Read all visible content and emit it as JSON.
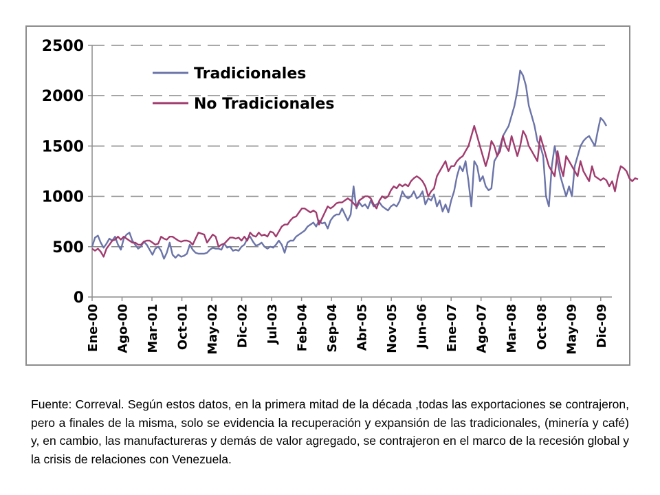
{
  "caption": "Fuente: Correval. Según estos datos, en la  primera mitad de la década ,todas las exportaciones se contrajeron, pero a finales de la misma, solo se evidencia la recuperación y expansión de las tradicionales,  (minería y café) y, en cambio, las manufactureras y demás de valor agregado, se contrajeron en el marco de la recesión global y la crisis de relaciones con Venezuela.",
  "chart_data": {
    "type": "line",
    "ylim": [
      0,
      2500
    ],
    "yticks": [
      "0",
      "500",
      "1000",
      "1500",
      "2000",
      "2500"
    ],
    "grid": "horizontal dashed",
    "legend": "top-left",
    "xtick_labels": [
      "Ene-00",
      "Ago-00",
      "Mar-01",
      "Oct-01",
      "May-02",
      "Dic-02",
      "Jul-03",
      "Feb-04",
      "Sep-04",
      "Abr-05",
      "Nov-05",
      "Jun-06",
      "Ene-07",
      "Ago-07",
      "Mar-08",
      "Oct-08",
      "May-09",
      "Dic-09"
    ],
    "x_start": "2000-01",
    "series": [
      {
        "name": "Tradicionales",
        "color": "#6b74a8",
        "values": [
          500,
          590,
          610,
          540,
          490,
          530,
          580,
          560,
          600,
          520,
          470,
          580,
          620,
          640,
          560,
          520,
          480,
          500,
          550,
          520,
          470,
          420,
          480,
          500,
          460,
          380,
          440,
          540,
          420,
          390,
          420,
          400,
          410,
          430,
          520,
          470,
          440,
          430,
          430,
          430,
          440,
          470,
          490,
          480,
          480,
          470,
          530,
          490,
          500,
          460,
          470,
          460,
          500,
          520,
          580,
          600,
          550,
          510,
          520,
          540,
          500,
          480,
          500,
          490,
          520,
          560,
          520,
          440,
          540,
          560,
          560,
          600,
          620,
          640,
          660,
          700,
          720,
          740,
          700,
          760,
          730,
          740,
          680,
          760,
          800,
          820,
          820,
          880,
          820,
          760,
          820,
          1100,
          880,
          940,
          900,
          920,
          880,
          960,
          900,
          920,
          940,
          900,
          880,
          860,
          900,
          920,
          900,
          950,
          1050,
          1000,
          980,
          1000,
          1050,
          980,
          1000,
          1050,
          920,
          980,
          960,
          1020,
          900,
          960,
          850,
          920,
          840,
          960,
          1050,
          1200,
          1300,
          1250,
          1350,
          1150,
          900,
          1350,
          1300,
          1150,
          1200,
          1100,
          1060,
          1080,
          1350,
          1400,
          1500,
          1600,
          1650,
          1700,
          1800,
          1900,
          2050,
          2250,
          2200,
          2100,
          1900,
          1800,
          1700,
          1550,
          1500,
          1400,
          1000,
          900,
          1300,
          1500,
          1350,
          1200,
          1100,
          1000,
          1100,
          1000,
          1300,
          1400,
          1500,
          1550,
          1580,
          1600,
          1550,
          1500,
          1650,
          1780,
          1750,
          1700
        ]
      },
      {
        "name": "No Tradicionales",
        "color": "#a03b6e",
        "values": [
          480,
          460,
          480,
          450,
          400,
          480,
          520,
          560,
          570,
          600,
          570,
          600,
          580,
          560,
          540,
          540,
          520,
          520,
          550,
          560,
          560,
          540,
          520,
          530,
          600,
          580,
          570,
          600,
          600,
          580,
          560,
          550,
          560,
          560,
          550,
          520,
          580,
          640,
          630,
          620,
          540,
          580,
          620,
          600,
          500,
          520,
          530,
          560,
          590,
          590,
          580,
          590,
          560,
          600,
          560,
          640,
          610,
          600,
          640,
          610,
          620,
          600,
          650,
          640,
          600,
          650,
          700,
          720,
          720,
          760,
          790,
          800,
          840,
          880,
          880,
          860,
          840,
          860,
          840,
          720,
          780,
          840,
          900,
          880,
          900,
          930,
          940,
          940,
          960,
          980,
          960,
          930,
          900,
          960,
          980,
          1000,
          1000,
          980,
          920,
          880,
          960,
          1000,
          980,
          1000,
          1060,
          1100,
          1080,
          1120,
          1100,
          1120,
          1100,
          1150,
          1180,
          1200,
          1180,
          1150,
          1100,
          1000,
          1050,
          1080,
          1200,
          1250,
          1300,
          1350,
          1250,
          1300,
          1300,
          1350,
          1380,
          1400,
          1450,
          1500,
          1600,
          1700,
          1600,
          1500,
          1400,
          1300,
          1400,
          1550,
          1500,
          1400,
          1450,
          1600,
          1500,
          1450,
          1600,
          1500,
          1400,
          1500,
          1650,
          1600,
          1500,
          1450,
          1400,
          1350,
          1600,
          1500,
          1400,
          1300,
          1250,
          1200,
          1450,
          1300,
          1200,
          1400,
          1350,
          1300,
          1250,
          1200,
          1350,
          1250,
          1200,
          1150,
          1300,
          1200,
          1180,
          1160,
          1180,
          1160,
          1100,
          1150,
          1050,
          1200,
          1300,
          1280,
          1250,
          1180,
          1150,
          1180,
          1170
        ]
      }
    ]
  }
}
